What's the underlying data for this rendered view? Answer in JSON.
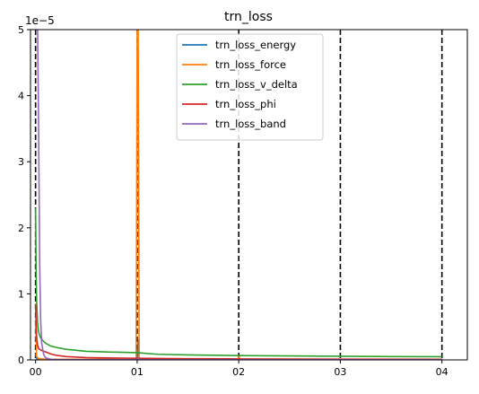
{
  "chart_data": {
    "type": "line",
    "title": "trn_loss",
    "xlabel": "",
    "ylabel": "",
    "y_offset_text": "1e−5",
    "xlim": [
      -0.05,
      4.25
    ],
    "ylim": [
      0,
      5
    ],
    "x_ticks": [
      0,
      1,
      2,
      3,
      4
    ],
    "x_tick_labels": [
      "00",
      "01",
      "02",
      "03",
      "04"
    ],
    "y_ticks": [
      0,
      1,
      2,
      3,
      4,
      5
    ],
    "y_tick_labels": [
      "0",
      "1",
      "2",
      "3",
      "4",
      "5"
    ],
    "vlines": [
      0,
      1,
      2,
      3,
      4
    ],
    "grid": false,
    "legend_position": "top-center",
    "series": [
      {
        "name": "trn_loss_energy",
        "color": "#1f77b4",
        "x": [
          0,
          0.01,
          0.02,
          0.05,
          0.1,
          1.0,
          1.01,
          1.02,
          2.0,
          4.0
        ],
        "y": [
          0.1,
          0.02,
          0.01,
          0.005,
          0.003,
          0.003,
          0.3,
          0.002,
          0.001,
          0.001
        ]
      },
      {
        "name": "trn_loss_force",
        "color": "#ff7f0e",
        "x": [
          0,
          0.01,
          0.03,
          0.1,
          0.99,
          1.0,
          1.01,
          1.02,
          1.05,
          2.0,
          2.005,
          2.01,
          4.0
        ],
        "y": [
          0.6,
          0.05,
          0.02,
          0.01,
          0.01,
          5.0,
          5.0,
          0.01,
          0.005,
          0.003,
          0.06,
          0.003,
          0.002
        ]
      },
      {
        "name": "trn_loss_v_delta",
        "color": "#2ca02c",
        "x": [
          0,
          0.005,
          0.01,
          0.02,
          0.03,
          0.05,
          0.08,
          0.1,
          0.15,
          0.2,
          0.3,
          0.5,
          0.7,
          1.0,
          1.2,
          1.5,
          2.0,
          2.5,
          3.0,
          3.5,
          4.0
        ],
        "y": [
          2.3,
          1.4,
          0.9,
          0.55,
          0.42,
          0.33,
          0.28,
          0.25,
          0.21,
          0.19,
          0.16,
          0.13,
          0.12,
          0.11,
          0.085,
          0.075,
          0.065,
          0.06,
          0.055,
          0.05,
          0.048
        ]
      },
      {
        "name": "trn_loss_phi",
        "color": "#d62728",
        "x": [
          0,
          0.005,
          0.01,
          0.02,
          0.03,
          0.05,
          0.08,
          0.1,
          0.15,
          0.2,
          0.3,
          0.5,
          0.7,
          1.0,
          1.5,
          2.0,
          3.0,
          4.0
        ],
        "y": [
          0.85,
          0.55,
          0.35,
          0.22,
          0.17,
          0.15,
          0.13,
          0.12,
          0.09,
          0.07,
          0.05,
          0.035,
          0.03,
          0.025,
          0.018,
          0.015,
          0.012,
          0.01
        ]
      },
      {
        "name": "trn_loss_band",
        "color": "#9467bd",
        "x": [
          0,
          0.01,
          0.02,
          0.03,
          0.04,
          0.05,
          0.06,
          0.08,
          0.1,
          0.15,
          0.2,
          1.0,
          1.01,
          1.02,
          2.0,
          4.0
        ],
        "y": [
          5.0,
          5.0,
          5.0,
          3.5,
          1.5,
          0.6,
          0.25,
          0.08,
          0.03,
          0.01,
          0.005,
          0.004,
          0.02,
          0.004,
          0.003,
          0.002
        ]
      }
    ]
  }
}
